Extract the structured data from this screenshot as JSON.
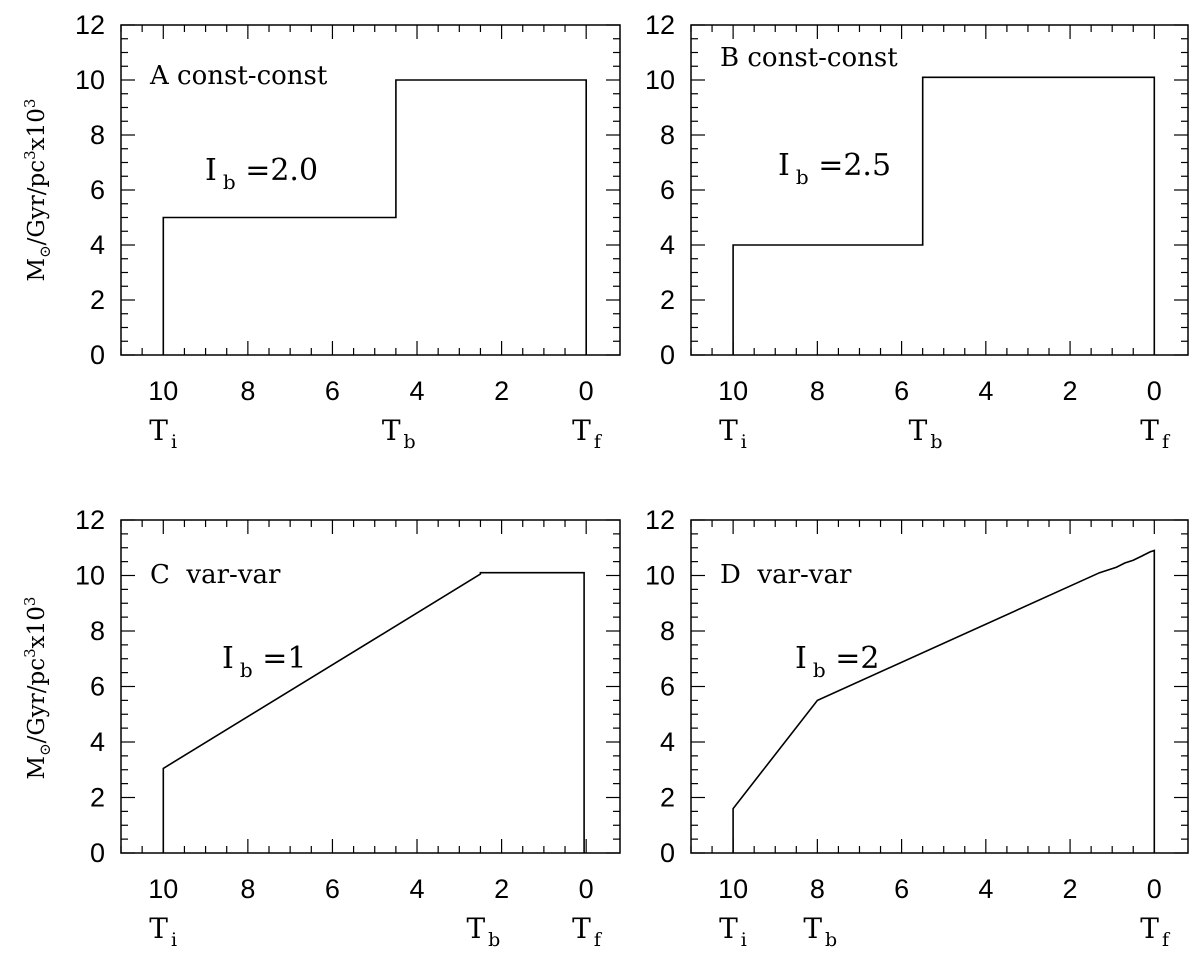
{
  "figure": {
    "ylabel_parts": {
      "main": "M",
      "sun": "⊙",
      "mid": "/Gyr/pc",
      "cube": "3",
      "times": "x10",
      "exp": "3"
    }
  },
  "chart_data": [
    {
      "type": "line",
      "panel_label": "A const-const",
      "annotation": {
        "base": "I",
        "sub": "b",
        "rest": " =2.0"
      },
      "xlim": [
        11,
        -0.8
      ],
      "ylim": [
        0,
        12
      ],
      "x_ticks": [
        10,
        8,
        6,
        4,
        2,
        0
      ],
      "y_ticks": [
        0,
        2,
        4,
        6,
        8,
        10,
        12
      ],
      "markers": [
        {
          "x": 10,
          "sub": "i"
        },
        {
          "x": 4.5,
          "sub": "b"
        },
        {
          "x": 0,
          "sub": "f"
        }
      ],
      "series": [
        {
          "x": [
            10,
            10,
            4.5,
            4.5,
            0,
            0
          ],
          "y": [
            0,
            5,
            5,
            10,
            10,
            0
          ]
        }
      ]
    },
    {
      "type": "line",
      "panel_label": "B const-const",
      "annotation": {
        "base": "I",
        "sub": "b",
        "rest": " =2.5"
      },
      "xlim": [
        11,
        -0.8
      ],
      "ylim": [
        0,
        12
      ],
      "x_ticks": [
        10,
        8,
        6,
        4,
        2,
        0
      ],
      "y_ticks": [
        0,
        2,
        4,
        6,
        8,
        10,
        12
      ],
      "markers": [
        {
          "x": 10,
          "sub": "i"
        },
        {
          "x": 5.5,
          "sub": "b"
        },
        {
          "x": 0,
          "sub": "f"
        }
      ],
      "series": [
        {
          "x": [
            10,
            10,
            5.5,
            5.5,
            0,
            0
          ],
          "y": [
            0,
            4,
            4,
            10.1,
            10.1,
            0
          ]
        }
      ]
    },
    {
      "type": "line",
      "panel_label": "C  var-var",
      "annotation": {
        "base": "I",
        "sub": "b",
        "rest": " =1"
      },
      "xlim": [
        11,
        -0.8
      ],
      "ylim": [
        0,
        12
      ],
      "x_ticks": [
        10,
        8,
        6,
        4,
        2,
        0
      ],
      "y_ticks": [
        0,
        2,
        4,
        6,
        8,
        10,
        12
      ],
      "markers": [
        {
          "x": 10,
          "sub": "i"
        },
        {
          "x": 2.5,
          "sub": "b"
        },
        {
          "x": 0,
          "sub": "f"
        }
      ],
      "series": [
        {
          "x": [
            10,
            10,
            2.5,
            2.5,
            0.05,
            0.05
          ],
          "y": [
            0,
            3.05,
            10.05,
            10.1,
            10.1,
            0
          ]
        }
      ]
    },
    {
      "type": "line",
      "panel_label": "D  var-var",
      "annotation": {
        "base": "I",
        "sub": "b",
        "rest": " =2"
      },
      "xlim": [
        11,
        -0.8
      ],
      "ylim": [
        0,
        12
      ],
      "x_ticks": [
        10,
        8,
        6,
        4,
        2,
        0
      ],
      "y_ticks": [
        0,
        2,
        4,
        6,
        8,
        10,
        12
      ],
      "markers": [
        {
          "x": 10,
          "sub": "i"
        },
        {
          "x": 8,
          "sub": "b"
        },
        {
          "x": 0,
          "sub": "f"
        }
      ],
      "series": [
        {
          "x": [
            10,
            10,
            8,
            1.3,
            1.1,
            0.9,
            0.7,
            0.5,
            0.3,
            0.1,
            0,
            0
          ],
          "y": [
            0,
            1.6,
            5.5,
            10.1,
            10.2,
            10.3,
            10.45,
            10.55,
            10.7,
            10.85,
            10.9,
            0
          ]
        }
      ]
    }
  ]
}
